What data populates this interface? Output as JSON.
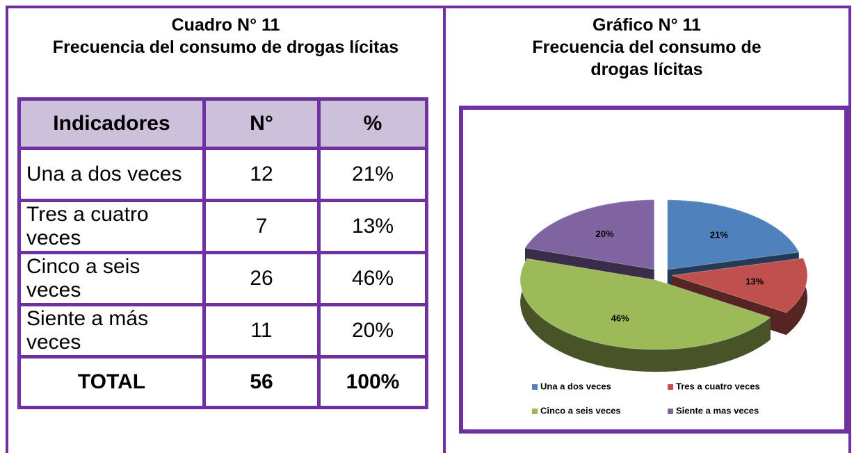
{
  "table": {
    "title": "Cuadro N° 11",
    "subtitle": "Frecuencia del consumo de drogas lícitas",
    "header": [
      "Indicadores",
      "N°",
      "%"
    ],
    "rows": [
      [
        "Una a dos veces",
        12,
        "21%"
      ],
      [
        "Tres a cuatro veces",
        7,
        "13%"
      ],
      [
        "Cinco a seis veces",
        26,
        "46%"
      ],
      [
        "Siente a más veces",
        11,
        "20%"
      ]
    ],
    "total": [
      "TOTAL",
      56,
      "100%"
    ]
  },
  "chart_data": {
    "type": "pie",
    "title": "Gráfico N° 11",
    "subtitle": "Frecuencia del consumo de drogas lícitas",
    "categories": [
      "Una a dos veces",
      "Tres a cuatro veces",
      "Cinco a seis veces",
      "Siente a mas veces"
    ],
    "values": [
      21,
      13,
      46,
      20
    ],
    "value_labels": [
      "21%",
      "13%",
      "46%",
      "20%"
    ],
    "colors": [
      "#4f81bd",
      "#c0504d",
      "#9bbb59",
      "#8064a2"
    ],
    "legend": "bottom"
  }
}
